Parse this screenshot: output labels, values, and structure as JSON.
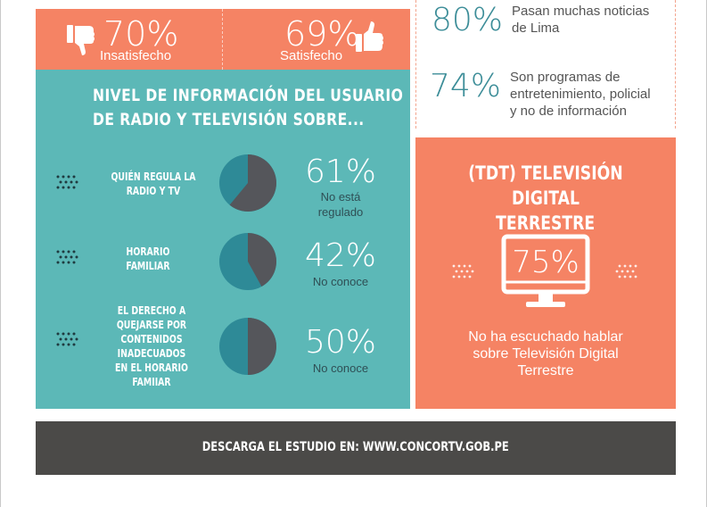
{
  "satisfaction": {
    "left": {
      "percent": "70%",
      "label": "Insatisfecho",
      "icon": "thumbs-down-icon"
    },
    "right": {
      "percent": "69%",
      "label": "Satisfecho",
      "icon": "thumbs-up-icon"
    }
  },
  "stats": [
    {
      "percent": "80%",
      "text_lines": [
        "Pasan muchas noticias",
        "de Lima"
      ]
    },
    {
      "percent": "74%",
      "text_lines": [
        "Son programas de",
        "entretenimiento, policial",
        "y no de información"
      ]
    }
  ],
  "info_panel": {
    "title_lines": [
      "NIVEL DE INFORMACIÓN DEL USUARIO",
      "DE RADIO Y TELEVISIÓN SOBRE..."
    ],
    "rows": [
      {
        "label_lines": [
          "QUIÉN REGULA LA",
          "RADIO Y TV"
        ],
        "percent": "61%",
        "value": 61,
        "sub_lines": [
          "No está",
          "regulado"
        ]
      },
      {
        "label_lines": [
          "HORARIO",
          "FAMILIAR"
        ],
        "percent": "42%",
        "value": 42,
        "sub_lines": [
          "No conoce"
        ]
      },
      {
        "label_lines": [
          "EL DERECHO A",
          "QUEJARSE POR",
          "CONTENIDOS",
          "INADECUADOS",
          "EN EL HORARIO",
          "FAMIIAR"
        ],
        "percent": "50%",
        "value": 50,
        "sub_lines": [
          "No conoce"
        ]
      }
    ]
  },
  "tdt": {
    "title_lines": [
      "(TDT) TELEVISIÓN DIGITAL",
      "TERRESTRE"
    ],
    "percent": "75%",
    "icon": "tv-icon",
    "desc_lines": [
      "No ha escuchado hablar",
      "sobre Televisión Digital",
      "Terrestre"
    ]
  },
  "footer": {
    "text": "DESCARGA EL ESTUDIO EN: WWW.CONCORTV.GOB.PE"
  },
  "colors": {
    "orange": "#f58364",
    "teal": "#5cb8b7",
    "dark": "#4b4a48",
    "pie_dark": "#55565b",
    "pie_teal": "#2e8a97",
    "stat_teal": "#3c8d98"
  }
}
